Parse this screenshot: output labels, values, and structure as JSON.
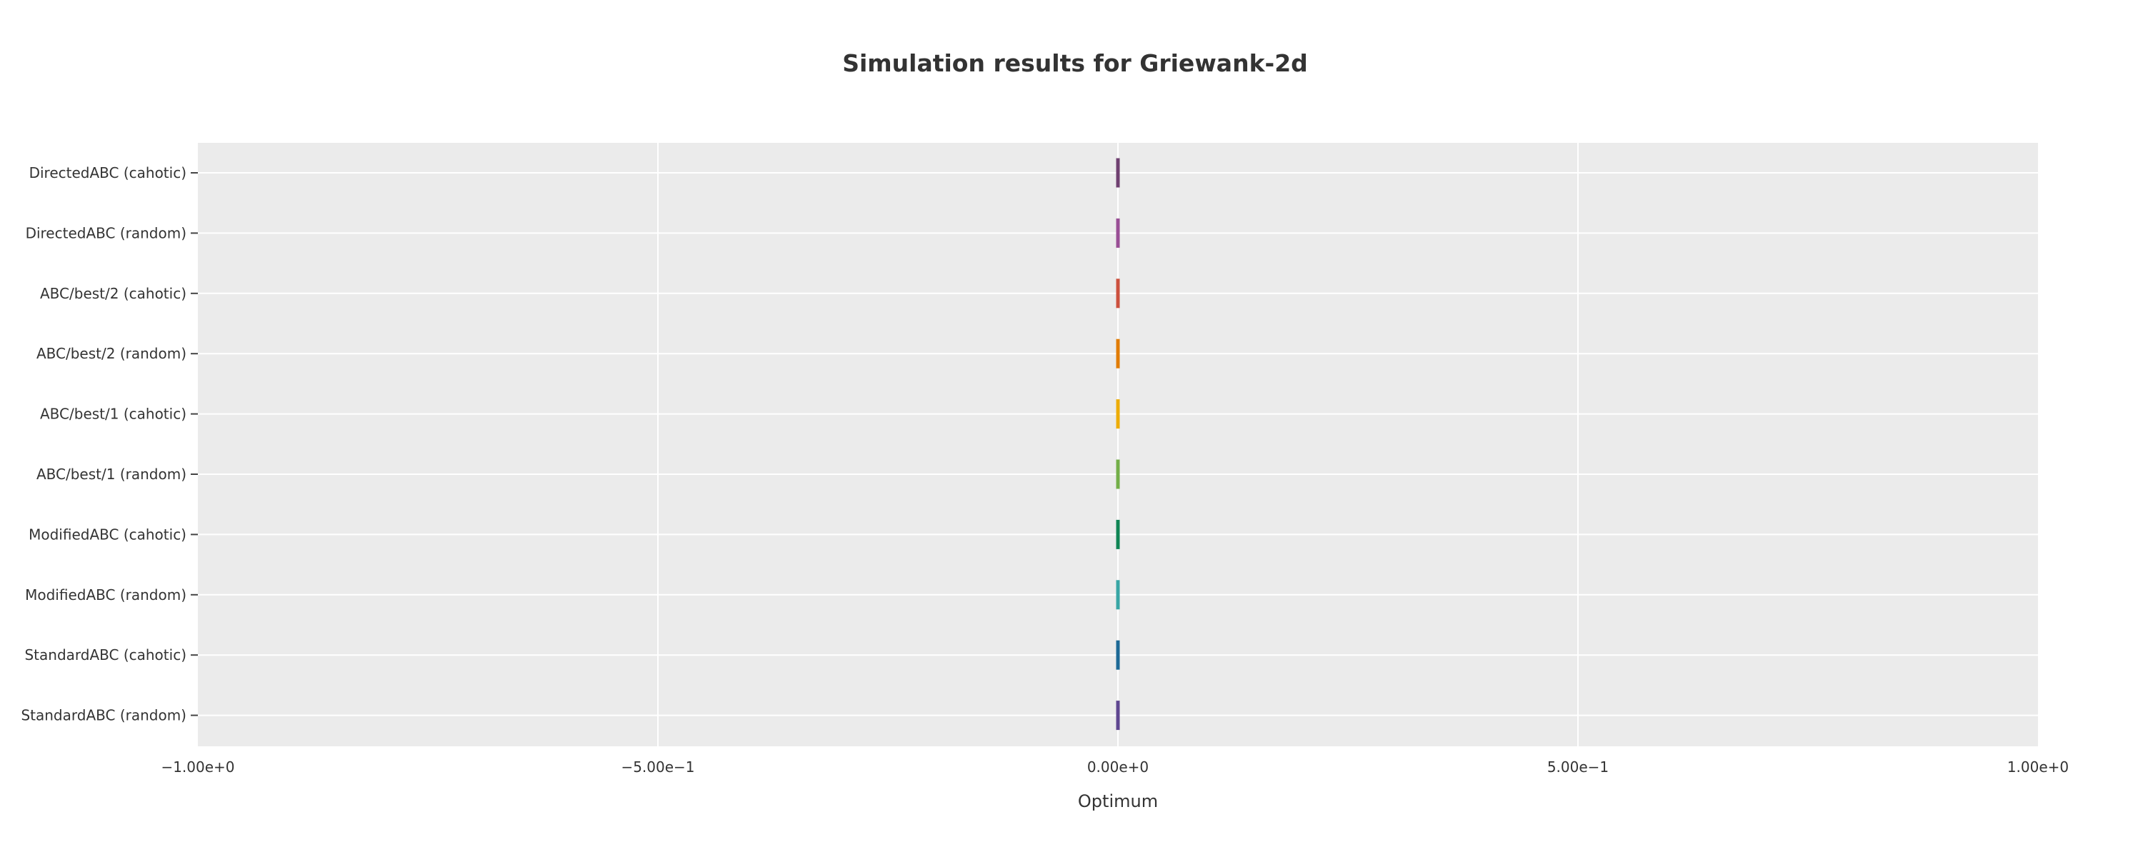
{
  "chart_data": {
    "type": "box",
    "orientation": "horizontal",
    "title": "Simulation results for Griewank-2d",
    "xlabel": "Optimum",
    "ylabel": "",
    "xlim": [
      -1,
      1
    ],
    "x_ticks": [
      {
        "value": -1,
        "label": "−1.00e+0"
      },
      {
        "value": -0.5,
        "label": "−5.00e−1"
      },
      {
        "value": 0,
        "label": "0.00e+0"
      },
      {
        "value": 0.5,
        "label": "5.00e−1"
      },
      {
        "value": 1,
        "label": "1.00e+0"
      }
    ],
    "grid": true,
    "legend": false,
    "series": [
      {
        "name": "DirectedABC (cahotic)",
        "values": [
          0
        ],
        "color": "#6f4070"
      },
      {
        "name": "DirectedABC (random)",
        "values": [
          0
        ],
        "color": "#994e95"
      },
      {
        "name": "ABC/best/2 (cahotic)",
        "values": [
          0
        ],
        "color": "#cc503e"
      },
      {
        "name": "ABC/best/2 (random)",
        "values": [
          0
        ],
        "color": "#e17c05"
      },
      {
        "name": "ABC/best/1 (cahotic)",
        "values": [
          0
        ],
        "color": "#edad08"
      },
      {
        "name": "ABC/best/1 (random)",
        "values": [
          0
        ],
        "color": "#73af48"
      },
      {
        "name": "ModifiedABC (cahotic)",
        "values": [
          0
        ],
        "color": "#0f8554"
      },
      {
        "name": "ModifiedABC (random)",
        "values": [
          0
        ],
        "color": "#38a6a5"
      },
      {
        "name": "StandardABC (cahotic)",
        "values": [
          0
        ],
        "color": "#1d6996"
      },
      {
        "name": "StandardABC (random)",
        "values": [
          0
        ],
        "color": "#5f4690"
      }
    ]
  },
  "colors": {
    "plot_background": "#ebebeb",
    "gridline": "#ffffff",
    "text": "#333333"
  }
}
